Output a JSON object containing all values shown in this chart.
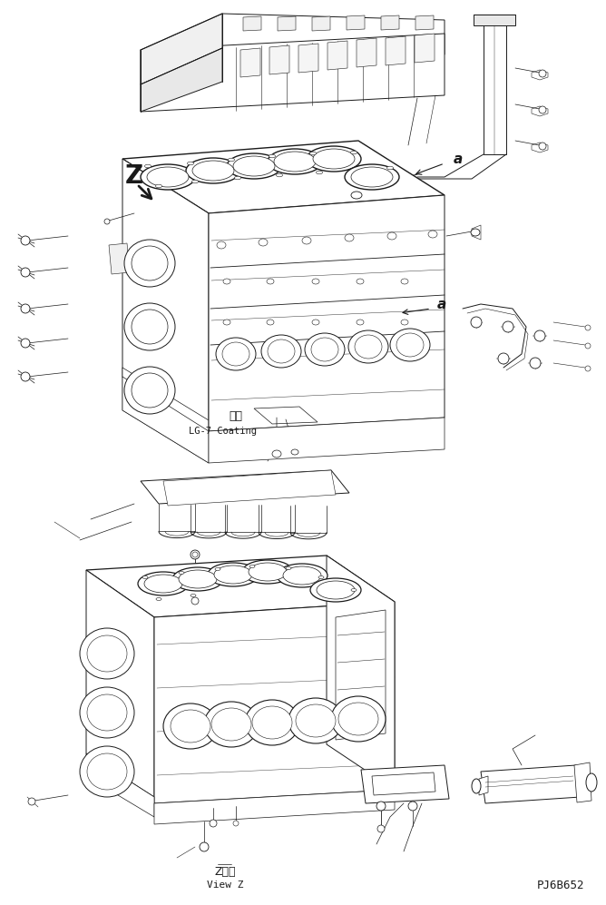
{
  "bg_color": "#ffffff",
  "lc": "#1a1a1a",
  "lw": 0.7,
  "bottom_left_text1": "Z　視",
  "bottom_left_text2": "View Z",
  "bottom_right_text": "PJ6B652",
  "label_a1": "a",
  "label_a2": "a",
  "label_z": "Z",
  "coating_text1": "塗布",
  "coating_text2": "LG-7 Coating",
  "figsize": [
    6.68,
    9.97
  ],
  "dpi": 100
}
